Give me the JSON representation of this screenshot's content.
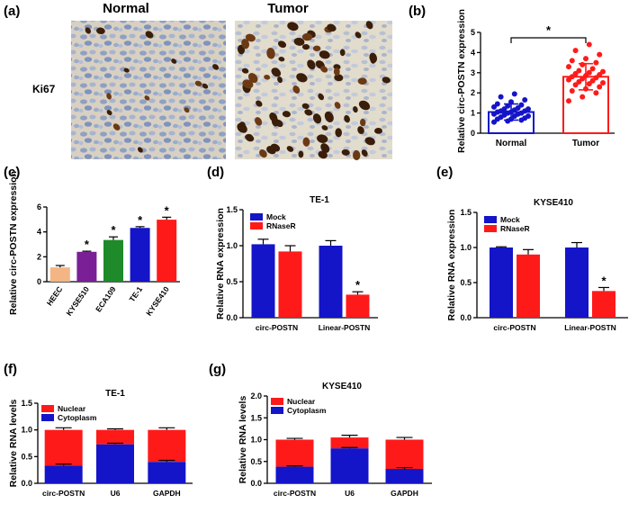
{
  "panel_labels": {
    "a": "(a)",
    "b": "(b)",
    "c": "(c)",
    "d": "(d)",
    "e": "(e)",
    "f": "(f)",
    "g": "(g)"
  },
  "panel_a": {
    "normal_title": "Normal",
    "tumor_title": "Tumor",
    "row_label": "Ki67"
  },
  "colors": {
    "blue": "#1414c8",
    "red": "#ff1a1a",
    "orange": "#f3b583",
    "purple": "#7a1f96",
    "green": "#1e8a2a",
    "black": "#000000"
  },
  "chart_data": [
    {
      "id": "b",
      "type": "scatter",
      "title": "",
      "ylabel": "Relative circ-POSTN expression",
      "ylim": [
        0,
        5
      ],
      "yticks": [
        "0",
        "1",
        "2",
        "3",
        "4",
        "5"
      ],
      "categories": [
        "Normal",
        "Tumor"
      ],
      "values": [
        1.05,
        2.8
      ],
      "errors": [
        0.4,
        0.65
      ],
      "points": [
        [
          0.55,
          0.6,
          0.65,
          0.7,
          0.7,
          0.75,
          0.8,
          0.85,
          0.85,
          0.9,
          0.95,
          0.95,
          1.0,
          1.0,
          1.05,
          1.05,
          1.1,
          1.1,
          1.15,
          1.2,
          1.2,
          1.25,
          1.3,
          1.35,
          1.4,
          1.45,
          1.55,
          1.65,
          1.8,
          1.95
        ],
        [
          1.6,
          1.8,
          2.0,
          2.1,
          2.2,
          2.3,
          2.4,
          2.45,
          2.5,
          2.55,
          2.6,
          2.65,
          2.7,
          2.75,
          2.8,
          2.85,
          2.9,
          2.95,
          3.0,
          3.05,
          3.1,
          3.2,
          3.3,
          3.4,
          3.5,
          3.6,
          3.7,
          3.9,
          4.1,
          4.4
        ]
      ],
      "significance": "*"
    },
    {
      "id": "c",
      "type": "bar",
      "title": "",
      "ylabel": "Relative circ-POSTN expression",
      "ylim": [
        0,
        6
      ],
      "yticks": [
        "0",
        "2",
        "4",
        "6"
      ],
      "categories": [
        "HEEC",
        "KYSE510",
        "ECA109",
        "TE-1",
        "KYSE410"
      ],
      "values": [
        1.15,
        2.4,
        3.35,
        4.32,
        4.98
      ],
      "errors": [
        0.15,
        0.05,
        0.25,
        0.1,
        0.2
      ],
      "stars": [
        "",
        "*",
        "*",
        "*",
        "*"
      ]
    },
    {
      "id": "d",
      "type": "bar",
      "title": "TE-1",
      "ylabel": "Relative RNA expression",
      "ylim": [
        0,
        1.5
      ],
      "yticks": [
        "0.0",
        "0.5",
        "1.0",
        "1.5"
      ],
      "categories": [
        "circ-POSTN",
        "Linear-POSTN"
      ],
      "series": [
        {
          "name": "Mock",
          "values": [
            1.02,
            1.0
          ],
          "errors": [
            0.07,
            0.07
          ]
        },
        {
          "name": "RNaseR",
          "values": [
            0.92,
            0.32
          ],
          "errors": [
            0.08,
            0.04
          ]
        }
      ],
      "stars": [
        "",
        "*"
      ]
    },
    {
      "id": "e",
      "type": "bar",
      "title": "KYSE410",
      "ylabel": "Relative RNA expression",
      "ylim": [
        0,
        1.5
      ],
      "yticks": [
        "0.0",
        "0.5",
        "1.0",
        "1.5"
      ],
      "categories": [
        "circ-POSTN",
        "Linear-POSTN"
      ],
      "series": [
        {
          "name": "Mock",
          "values": [
            1.0,
            1.0
          ],
          "errors": [
            0.01,
            0.07
          ]
        },
        {
          "name": "RNaseR",
          "values": [
            0.9,
            0.38
          ],
          "errors": [
            0.07,
            0.05
          ]
        }
      ],
      "stars": [
        "",
        "*"
      ]
    },
    {
      "id": "f",
      "type": "bar",
      "stacked": true,
      "title": "TE-1",
      "ylabel": "Relative RNA levels",
      "ylim": [
        0,
        1.5
      ],
      "yticks": [
        "0.0",
        "0.5",
        "1.0",
        "1.5"
      ],
      "categories": [
        "circ-POSTN",
        "U6",
        "GAPDH"
      ],
      "series": [
        {
          "name": "Nuclear",
          "values": [
            0.67,
            0.27,
            0.6
          ],
          "errors": [
            0.04,
            0.02,
            0.04
          ]
        },
        {
          "name": "Cytoplasm",
          "values": [
            0.33,
            0.73,
            0.4
          ],
          "errors": [
            0.03,
            0.02,
            0.03
          ]
        }
      ]
    },
    {
      "id": "g",
      "type": "bar",
      "stacked": true,
      "title": "KYSE410",
      "ylabel": "Relative RNA levels",
      "ylim": [
        0,
        2.0
      ],
      "yticks": [
        "0.0",
        "0.5",
        "1.0",
        "1.5",
        "2.0"
      ],
      "categories": [
        "circ-POSTN",
        "U6",
        "GAPDH"
      ],
      "series": [
        {
          "name": "Nuclear",
          "values": [
            0.62,
            0.25,
            0.67
          ],
          "errors": [
            0.03,
            0.05,
            0.05
          ]
        },
        {
          "name": "Cytoplasm",
          "values": [
            0.38,
            0.8,
            0.33
          ],
          "errors": [
            0.02,
            0.02,
            0.03
          ]
        }
      ]
    }
  ]
}
